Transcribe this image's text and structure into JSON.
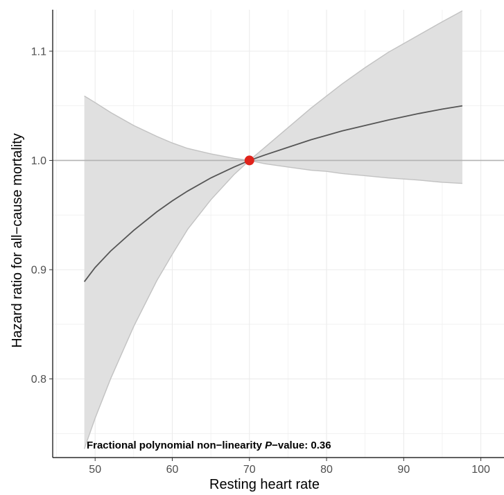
{
  "chart_data": {
    "type": "line",
    "title": "",
    "xlabel": "Resting heart rate",
    "ylabel": "Hazard ratio for all−cause mortality",
    "xlim": [
      44.5,
      103
    ],
    "ylim": [
      0.728,
      1.138
    ],
    "x_ticks": [
      50,
      60,
      70,
      80,
      90,
      100
    ],
    "x_tick_labels": [
      "50",
      "60",
      "70",
      "80",
      "90",
      "100"
    ],
    "y_ticks": [
      0.8,
      0.9,
      1.0,
      1.1
    ],
    "y_tick_labels": [
      "0.8",
      "0.9",
      "1.0",
      "1.1"
    ],
    "grid": true,
    "reference_line_y": 1.0,
    "reference_point": {
      "x": 70,
      "y": 1.0
    },
    "series": [
      {
        "x": [
          48.6,
          50,
          52,
          55,
          58,
          60,
          62,
          65,
          68,
          70,
          72,
          75,
          78,
          80,
          82,
          85,
          88,
          90,
          92,
          95,
          97.6
        ],
        "y": [
          0.889,
          0.902,
          0.917,
          0.936,
          0.953,
          0.963,
          0.972,
          0.984,
          0.994,
          1.0,
          1.005,
          1.012,
          1.019,
          1.023,
          1.027,
          1.032,
          1.037,
          1.04,
          1.043,
          1.047,
          1.05
        ],
        "lower": [
          0.736,
          0.764,
          0.8,
          0.848,
          0.89,
          0.914,
          0.937,
          0.964,
          0.987,
          1.0,
          0.997,
          0.994,
          0.991,
          0.99,
          0.988,
          0.986,
          0.984,
          0.983,
          0.982,
          0.98,
          0.979
        ],
        "upper": [
          1.059,
          1.053,
          1.044,
          1.032,
          1.022,
          1.016,
          1.011,
          1.006,
          1.002,
          1.0,
          1.012,
          1.03,
          1.048,
          1.059,
          1.07,
          1.085,
          1.099,
          1.107,
          1.115,
          1.127,
          1.137
        ]
      }
    ],
    "annotation": {
      "prefix": "Fractional polynomial non−linearity ",
      "italic": "P",
      "suffix": "−value: 0.36",
      "at": {
        "x": 48.9,
        "y": 0.74
      }
    },
    "colors": {
      "line": "#555555",
      "band": "#e0e0e0",
      "band_edge": "#c2c2c2",
      "reference": "#b3b3b3",
      "point": "#e0231b",
      "grid": "#ebebeb"
    }
  }
}
